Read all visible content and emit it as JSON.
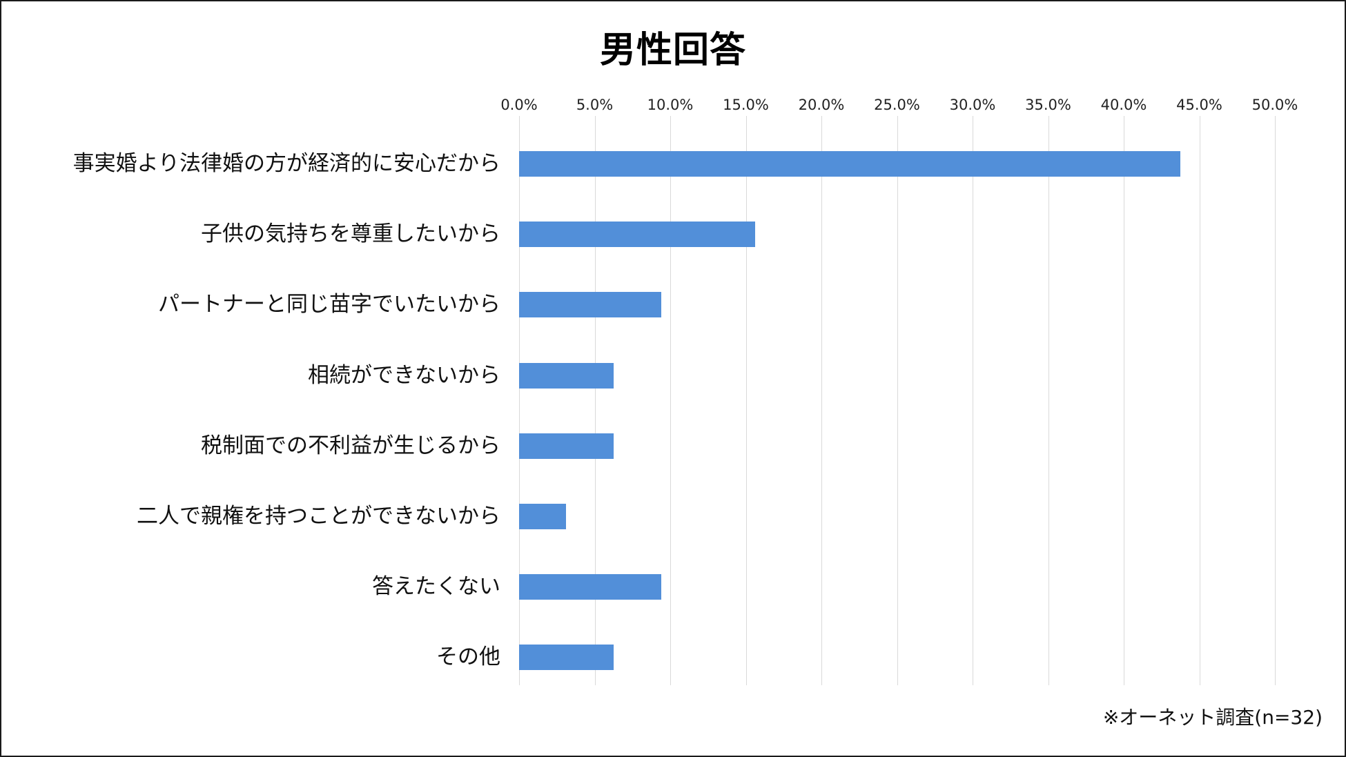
{
  "title": "男性回答",
  "footnote": "※オーネット調査(n=32)",
  "colors": {
    "bar": "#528fd9",
    "grid": "#d9d9d9",
    "border": "#1a1a1a"
  },
  "axis": {
    "ticks": [
      "0.0%",
      "5.0%",
      "10.0%",
      "15.0%",
      "20.0%",
      "25.0%",
      "30.0%",
      "35.0%",
      "40.0%",
      "45.0%",
      "50.0%"
    ]
  },
  "chart_data": {
    "type": "bar",
    "orientation": "horizontal",
    "title": "男性回答",
    "categories": [
      "事実婚より法律婚の方が経済的に安心だから",
      "子供の気持ちを尊重したいから",
      "パートナーと同じ苗字でいたいから",
      "相続ができないから",
      "税制面での不利益が生じるから",
      "二人で親権を持つことができないから",
      "答えたくない",
      "その他"
    ],
    "values": [
      43.75,
      15.6,
      9.4,
      6.25,
      6.25,
      3.1,
      9.4,
      6.25
    ],
    "xlabel": "",
    "ylabel": "",
    "xlim": [
      0,
      50
    ],
    "x_ticks": [
      "0.0%",
      "5.0%",
      "10.0%",
      "15.0%",
      "20.0%",
      "25.0%",
      "30.0%",
      "35.0%",
      "40.0%",
      "45.0%",
      "50.0%"
    ],
    "x_axis_position": "top",
    "grid": true,
    "legend": null,
    "annotations": [
      "※オーネット調査(n=32)"
    ]
  }
}
